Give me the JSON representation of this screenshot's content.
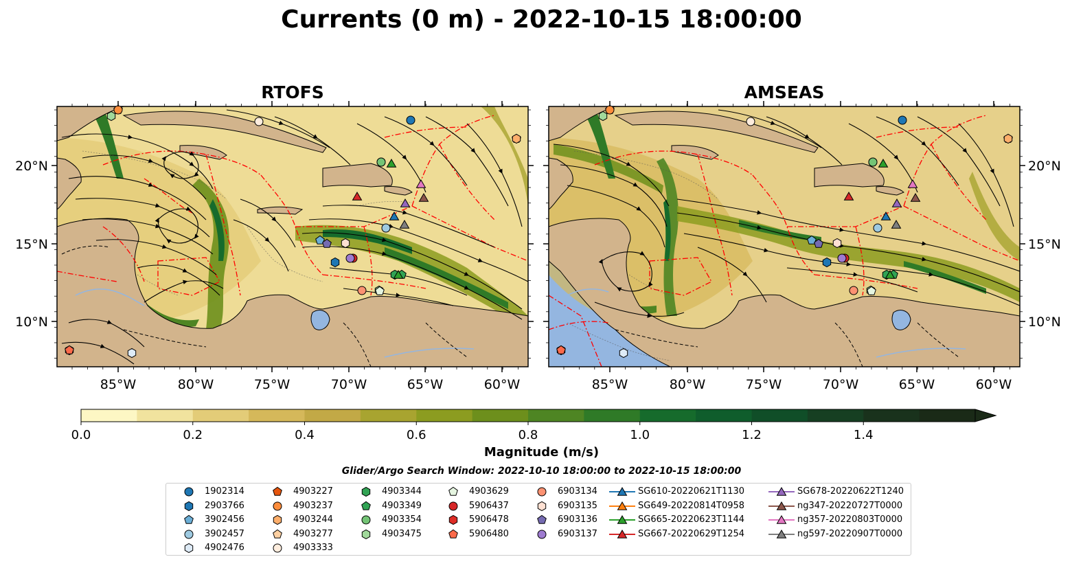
{
  "title": "Currents (0 m) - 2022-10-15 18:00:00",
  "panels": [
    {
      "title": "RTOFS"
    },
    {
      "title": "AMSEAS"
    }
  ],
  "axes": {
    "lon_labels": [
      "85°W",
      "80°W",
      "75°W",
      "70°W",
      "65°W",
      "60°W"
    ],
    "lat_labels": [
      "20°N",
      "15°N",
      "10°N"
    ]
  },
  "colorbar": {
    "label": "Magnitude (m/s)",
    "ticks": [
      "0.0",
      "0.2",
      "0.4",
      "0.6",
      "0.8",
      "1.0",
      "1.2",
      "1.4"
    ],
    "colors": [
      "#fdf7c4",
      "#f1e39e",
      "#e3cc78",
      "#d5b85a",
      "#c2a946",
      "#a8a430",
      "#8c9c20",
      "#6d8f1c",
      "#4e8523",
      "#2f7a27",
      "#166b2c",
      "#0f5d2c",
      "#104e28",
      "#163f22",
      "#19321c",
      "#1a2a17"
    ]
  },
  "search_window": "Glider/Argo Search Window: 2022-10-10 18:00:00 to 2022-10-15 18:00:00",
  "map_colors": {
    "land": "#d2b48c",
    "ocean_outside": "#94b6e0",
    "eez_lines": "#ff0000"
  },
  "legend": [
    {
      "label": "1902314",
      "marker": "circle",
      "color": "#1f77b4"
    },
    {
      "label": "2903766",
      "marker": "hexagon",
      "color": "#1f77b4"
    },
    {
      "label": "3902456",
      "marker": "pentagon",
      "color": "#6baed6"
    },
    {
      "label": "3902457",
      "marker": "circle",
      "color": "#9ecae1"
    },
    {
      "label": "4902476",
      "marker": "hexagon",
      "color": "#deebf7"
    },
    {
      "label": "4903227",
      "marker": "pentagon",
      "color": "#e6550d"
    },
    {
      "label": "4903237",
      "marker": "circle",
      "color": "#fd8d3c"
    },
    {
      "label": "4903244",
      "marker": "hexagon",
      "color": "#fdae6b"
    },
    {
      "label": "4903277",
      "marker": "pentagon",
      "color": "#fdd0a2"
    },
    {
      "label": "4903333",
      "marker": "circle",
      "color": "#feedde"
    },
    {
      "label": "4903344",
      "marker": "hexagon",
      "color": "#31a354"
    },
    {
      "label": "4903349",
      "marker": "pentagon",
      "color": "#31a354"
    },
    {
      "label": "4903354",
      "marker": "circle",
      "color": "#74c476"
    },
    {
      "label": "4903475",
      "marker": "hexagon",
      "color": "#a1d99b"
    },
    {
      "label": "4903629",
      "marker": "pentagon",
      "color": "#e5f5e0"
    },
    {
      "label": "5906437",
      "marker": "circle",
      "color": "#d62728"
    },
    {
      "label": "5906478",
      "marker": "hexagon",
      "color": "#de2d26"
    },
    {
      "label": "5906480",
      "marker": "pentagon",
      "color": "#fb6a4a"
    },
    {
      "label": "6903134",
      "marker": "circle",
      "color": "#fc9272"
    },
    {
      "label": "6903135",
      "marker": "hexagon",
      "color": "#fee0d2"
    },
    {
      "label": "6903136",
      "marker": "pentagon",
      "color": "#756bb1"
    },
    {
      "label": "6903137",
      "marker": "circle",
      "color": "#9e7bd0"
    },
    {
      "label": "SG610-20220621T1130",
      "marker": "triangle",
      "color": "#1f77b4"
    },
    {
      "label": "SG649-20220814T0958",
      "marker": "triangle",
      "color": "#ff7f0e"
    },
    {
      "label": "SG665-20220623T1144",
      "marker": "triangle",
      "color": "#2ca02c"
    },
    {
      "label": "SG667-20220629T1254",
      "marker": "triangle",
      "color": "#d62728"
    },
    {
      "label": "SG678-20220622T1240",
      "marker": "triangle",
      "color": "#9467bd"
    },
    {
      "label": "ng347-20220727T0000",
      "marker": "triangle",
      "color": "#8c564b"
    },
    {
      "label": "ng357-20220803T0000",
      "marker": "triangle",
      "color": "#e377c2"
    },
    {
      "label": "ng597-20220907T0000",
      "marker": "triangle",
      "color": "#7f7f7f"
    }
  ]
}
